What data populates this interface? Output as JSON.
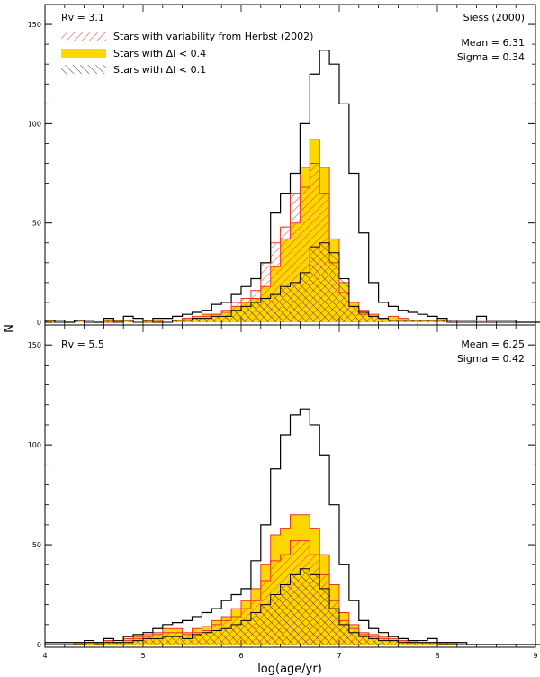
{
  "chart_data": {
    "type": "histogram",
    "xlabel": "log(age/yr)",
    "ylabel": "N",
    "xlim": [
      4,
      9
    ],
    "ylim": [
      0,
      160
    ],
    "bin_start": 4.0,
    "bin_width": 0.1,
    "x_ticks": [
      "4",
      "5",
      "6",
      "7",
      "8",
      "9"
    ],
    "y_ticks": [
      "0",
      "50",
      "100",
      "150"
    ],
    "legend": [
      {
        "label": "Stars with variability from Herbst (2002)",
        "style": "red-hatch"
      },
      {
        "label": "Stars with ΔI < 0.4",
        "style": "yellow-fill"
      },
      {
        "label": "Stars with ΔI < 0.1",
        "style": "black-hatch"
      }
    ],
    "panels": [
      {
        "rv_label": "Rv = 3.1",
        "model_label": "Siess (2000)",
        "mean_label": "Mean = 6.31",
        "sigma_label": "Sigma = 0.34",
        "series": {
          "all": [
            1,
            1,
            0,
            1,
            1,
            0,
            2,
            1,
            3,
            2,
            1,
            2,
            2,
            3,
            4,
            5,
            6,
            9,
            10,
            14,
            18,
            22,
            30,
            55,
            65,
            75,
            100,
            125,
            137,
            130,
            110,
            75,
            45,
            20,
            10,
            8,
            6,
            5,
            4,
            3,
            2,
            1,
            1,
            1,
            3,
            1,
            1,
            1,
            0,
            0,
            0,
            1,
            1,
            1,
            0
          ],
          "dI04": [
            1,
            0,
            0,
            1,
            0,
            0,
            1,
            1,
            1,
            0,
            1,
            1,
            0,
            1,
            2,
            3,
            4,
            4,
            5,
            8,
            10,
            12,
            18,
            28,
            42,
            50,
            78,
            92,
            78,
            42,
            20,
            10,
            6,
            4,
            2,
            3,
            2,
            1,
            1,
            1,
            1,
            0,
            0,
            0,
            0,
            0,
            0,
            0,
            0,
            0,
            0,
            0,
            0,
            0,
            0
          ],
          "variable": [
            0,
            0,
            0,
            1,
            0,
            0,
            0,
            1,
            1,
            0,
            0,
            1,
            0,
            1,
            2,
            2,
            3,
            4,
            6,
            10,
            12,
            16,
            30,
            40,
            48,
            65,
            68,
            80,
            65,
            30,
            15,
            8,
            4,
            3,
            2,
            1,
            1,
            1,
            1,
            1,
            2,
            1,
            0,
            0,
            1,
            0,
            0,
            0,
            0,
            0,
            0,
            0,
            0,
            0,
            0
          ],
          "dI01": [
            1,
            0,
            0,
            1,
            0,
            0,
            1,
            0,
            1,
            0,
            1,
            0,
            0,
            1,
            1,
            2,
            2,
            3,
            3,
            6,
            8,
            10,
            12,
            14,
            18,
            20,
            25,
            38,
            40,
            35,
            22,
            8,
            5,
            3,
            2,
            1,
            1,
            1,
            1,
            1,
            1,
            0,
            0,
            0,
            0,
            0,
            0,
            0,
            0,
            0,
            0,
            0,
            0,
            0,
            0
          ]
        }
      },
      {
        "rv_label": "Rv = 5.5",
        "model_label": "",
        "mean_label": "Mean = 6.25",
        "sigma_label": "Sigma = 0.42",
        "series": {
          "all": [
            1,
            1,
            1,
            1,
            2,
            1,
            3,
            2,
            4,
            5,
            6,
            8,
            10,
            11,
            12,
            14,
            16,
            18,
            22,
            25,
            28,
            42,
            60,
            88,
            105,
            115,
            118,
            110,
            95,
            70,
            40,
            22,
            12,
            8,
            6,
            4,
            3,
            2,
            2,
            3,
            1,
            1,
            1,
            0,
            0,
            0,
            0,
            0,
            0,
            0,
            0,
            0,
            0,
            0,
            0
          ],
          "dI04": [
            0,
            0,
            0,
            1,
            1,
            1,
            2,
            1,
            3,
            4,
            5,
            6,
            8,
            8,
            6,
            8,
            9,
            12,
            14,
            18,
            22,
            28,
            40,
            55,
            58,
            65,
            65,
            58,
            45,
            30,
            16,
            10,
            6,
            5,
            4,
            3,
            2,
            2,
            1,
            1,
            1,
            1,
            0,
            0,
            0,
            0,
            0,
            0,
            0,
            0,
            0,
            0,
            0,
            0,
            0
          ],
          "variable": [
            0,
            0,
            0,
            0,
            1,
            1,
            2,
            1,
            2,
            3,
            4,
            5,
            6,
            6,
            5,
            6,
            7,
            10,
            12,
            14,
            18,
            22,
            32,
            42,
            45,
            52,
            52,
            45,
            35,
            22,
            12,
            8,
            5,
            4,
            3,
            2,
            2,
            1,
            1,
            1,
            1,
            0,
            0,
            0,
            0,
            0,
            0,
            0,
            0,
            0,
            0,
            0,
            0,
            0,
            0
          ],
          "dI01": [
            0,
            0,
            0,
            0,
            1,
            0,
            1,
            1,
            1,
            2,
            3,
            3,
            4,
            4,
            3,
            5,
            6,
            7,
            8,
            10,
            12,
            16,
            20,
            25,
            30,
            35,
            38,
            35,
            28,
            18,
            10,
            6,
            4,
            3,
            2,
            2,
            1,
            1,
            1,
            1,
            0,
            0,
            0,
            0,
            0,
            0,
            0,
            0,
            0,
            0,
            0,
            0,
            0,
            0,
            0
          ]
        }
      }
    ]
  }
}
